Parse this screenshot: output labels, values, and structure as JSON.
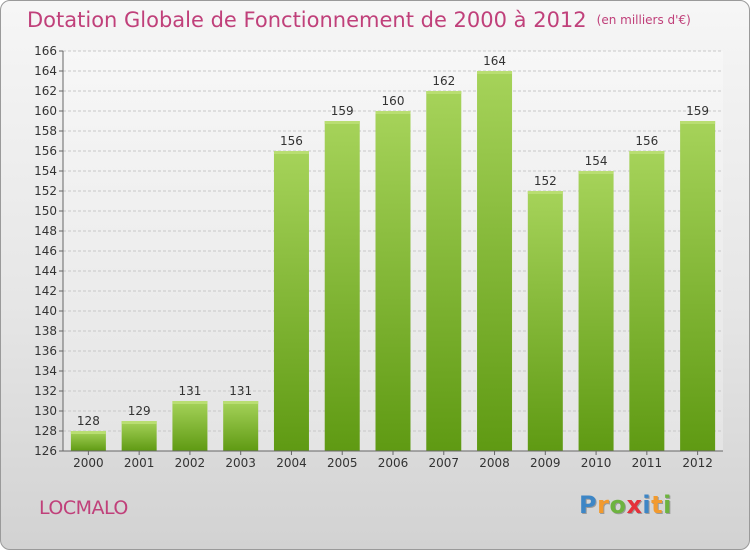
{
  "title": "Dotation Globale de Fonctionnement de 2000 à 2012",
  "unit": "(en milliers d'€)",
  "commune": "LOCMALO",
  "logo": {
    "letters": [
      "P",
      "r",
      "o",
      "x",
      "i",
      "t",
      "i"
    ],
    "colors": [
      "#3d86c6",
      "#f29a2e",
      "#6db33f",
      "#e5313a",
      "#3d86c6",
      "#f29a2e",
      "#6db33f"
    ]
  },
  "colors": {
    "bar_top": "#a6d35a",
    "bar_bottom": "#5f9a13",
    "title": "#c0407a",
    "grid": "#c8c8c8"
  },
  "chart_data": {
    "type": "bar",
    "title": "Dotation Globale de Fonctionnement de 2000 à 2012",
    "categories": [
      "2000",
      "2001",
      "2002",
      "2003",
      "2004",
      "2005",
      "2006",
      "2007",
      "2008",
      "2009",
      "2010",
      "2011",
      "2012"
    ],
    "values": [
      128,
      129,
      131,
      131,
      156,
      159,
      160,
      162,
      164,
      152,
      154,
      156,
      159
    ],
    "ylim": [
      126,
      166
    ],
    "yticks": [
      126,
      128,
      130,
      132,
      134,
      136,
      138,
      140,
      142,
      144,
      146,
      148,
      150,
      152,
      154,
      156,
      158,
      160,
      162,
      164,
      166
    ],
    "grid": true,
    "xlabel": "",
    "ylabel": ""
  }
}
